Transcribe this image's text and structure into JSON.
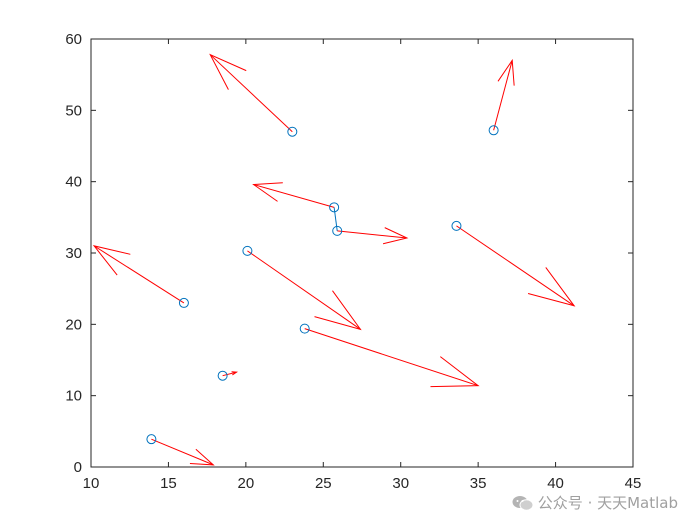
{
  "chart_data": {
    "type": "scatter",
    "title": "",
    "xlabel": "",
    "ylabel": "",
    "xlim": [
      10,
      45
    ],
    "ylim": [
      0,
      60
    ],
    "xticks": [
      10,
      15,
      20,
      25,
      30,
      35,
      40,
      45
    ],
    "yticks": [
      0,
      10,
      20,
      30,
      40,
      50,
      60
    ],
    "grid": false,
    "marker_color": "#0072BD",
    "arrow_color": "#FF0000",
    "axis_color": "#262626",
    "points": [
      {
        "x": 23.0,
        "y": 47.0
      },
      {
        "x": 36.0,
        "y": 47.2
      },
      {
        "x": 25.7,
        "y": 36.4
      },
      {
        "x": 25.9,
        "y": 33.1
      },
      {
        "x": 33.6,
        "y": 33.8
      },
      {
        "x": 20.1,
        "y": 30.3
      },
      {
        "x": 16.0,
        "y": 23.0
      },
      {
        "x": 23.8,
        "y": 19.4
      },
      {
        "x": 18.5,
        "y": 12.8
      },
      {
        "x": 13.9,
        "y": 3.9
      }
    ],
    "connections": [
      {
        "from": 2,
        "to": 3
      }
    ],
    "arrows": [
      {
        "x": 23.0,
        "y": 47.0,
        "x2": 17.7,
        "y2": 57.8
      },
      {
        "x": 36.0,
        "y": 47.2,
        "x2": 37.2,
        "y2": 57.0
      },
      {
        "x": 25.7,
        "y": 36.4,
        "x2": 20.5,
        "y2": 39.6
      },
      {
        "x": 25.9,
        "y": 33.1,
        "x2": 30.4,
        "y2": 32.1
      },
      {
        "x": 33.6,
        "y": 33.8,
        "x2": 41.2,
        "y2": 22.6
      },
      {
        "x": 20.1,
        "y": 30.3,
        "x2": 27.4,
        "y2": 19.3
      },
      {
        "x": 16.0,
        "y": 23.0,
        "x2": 10.2,
        "y2": 31.0
      },
      {
        "x": 23.8,
        "y": 19.4,
        "x2": 35.0,
        "y2": 11.4
      },
      {
        "x": 18.5,
        "y": 12.8,
        "x2": 19.4,
        "y2": 13.3
      },
      {
        "x": 13.9,
        "y": 3.9,
        "x2": 17.9,
        "y2": 0.3
      }
    ]
  },
  "watermark": {
    "icon": "wechat-icon",
    "text": "公众号 · 天天Matlab"
  }
}
